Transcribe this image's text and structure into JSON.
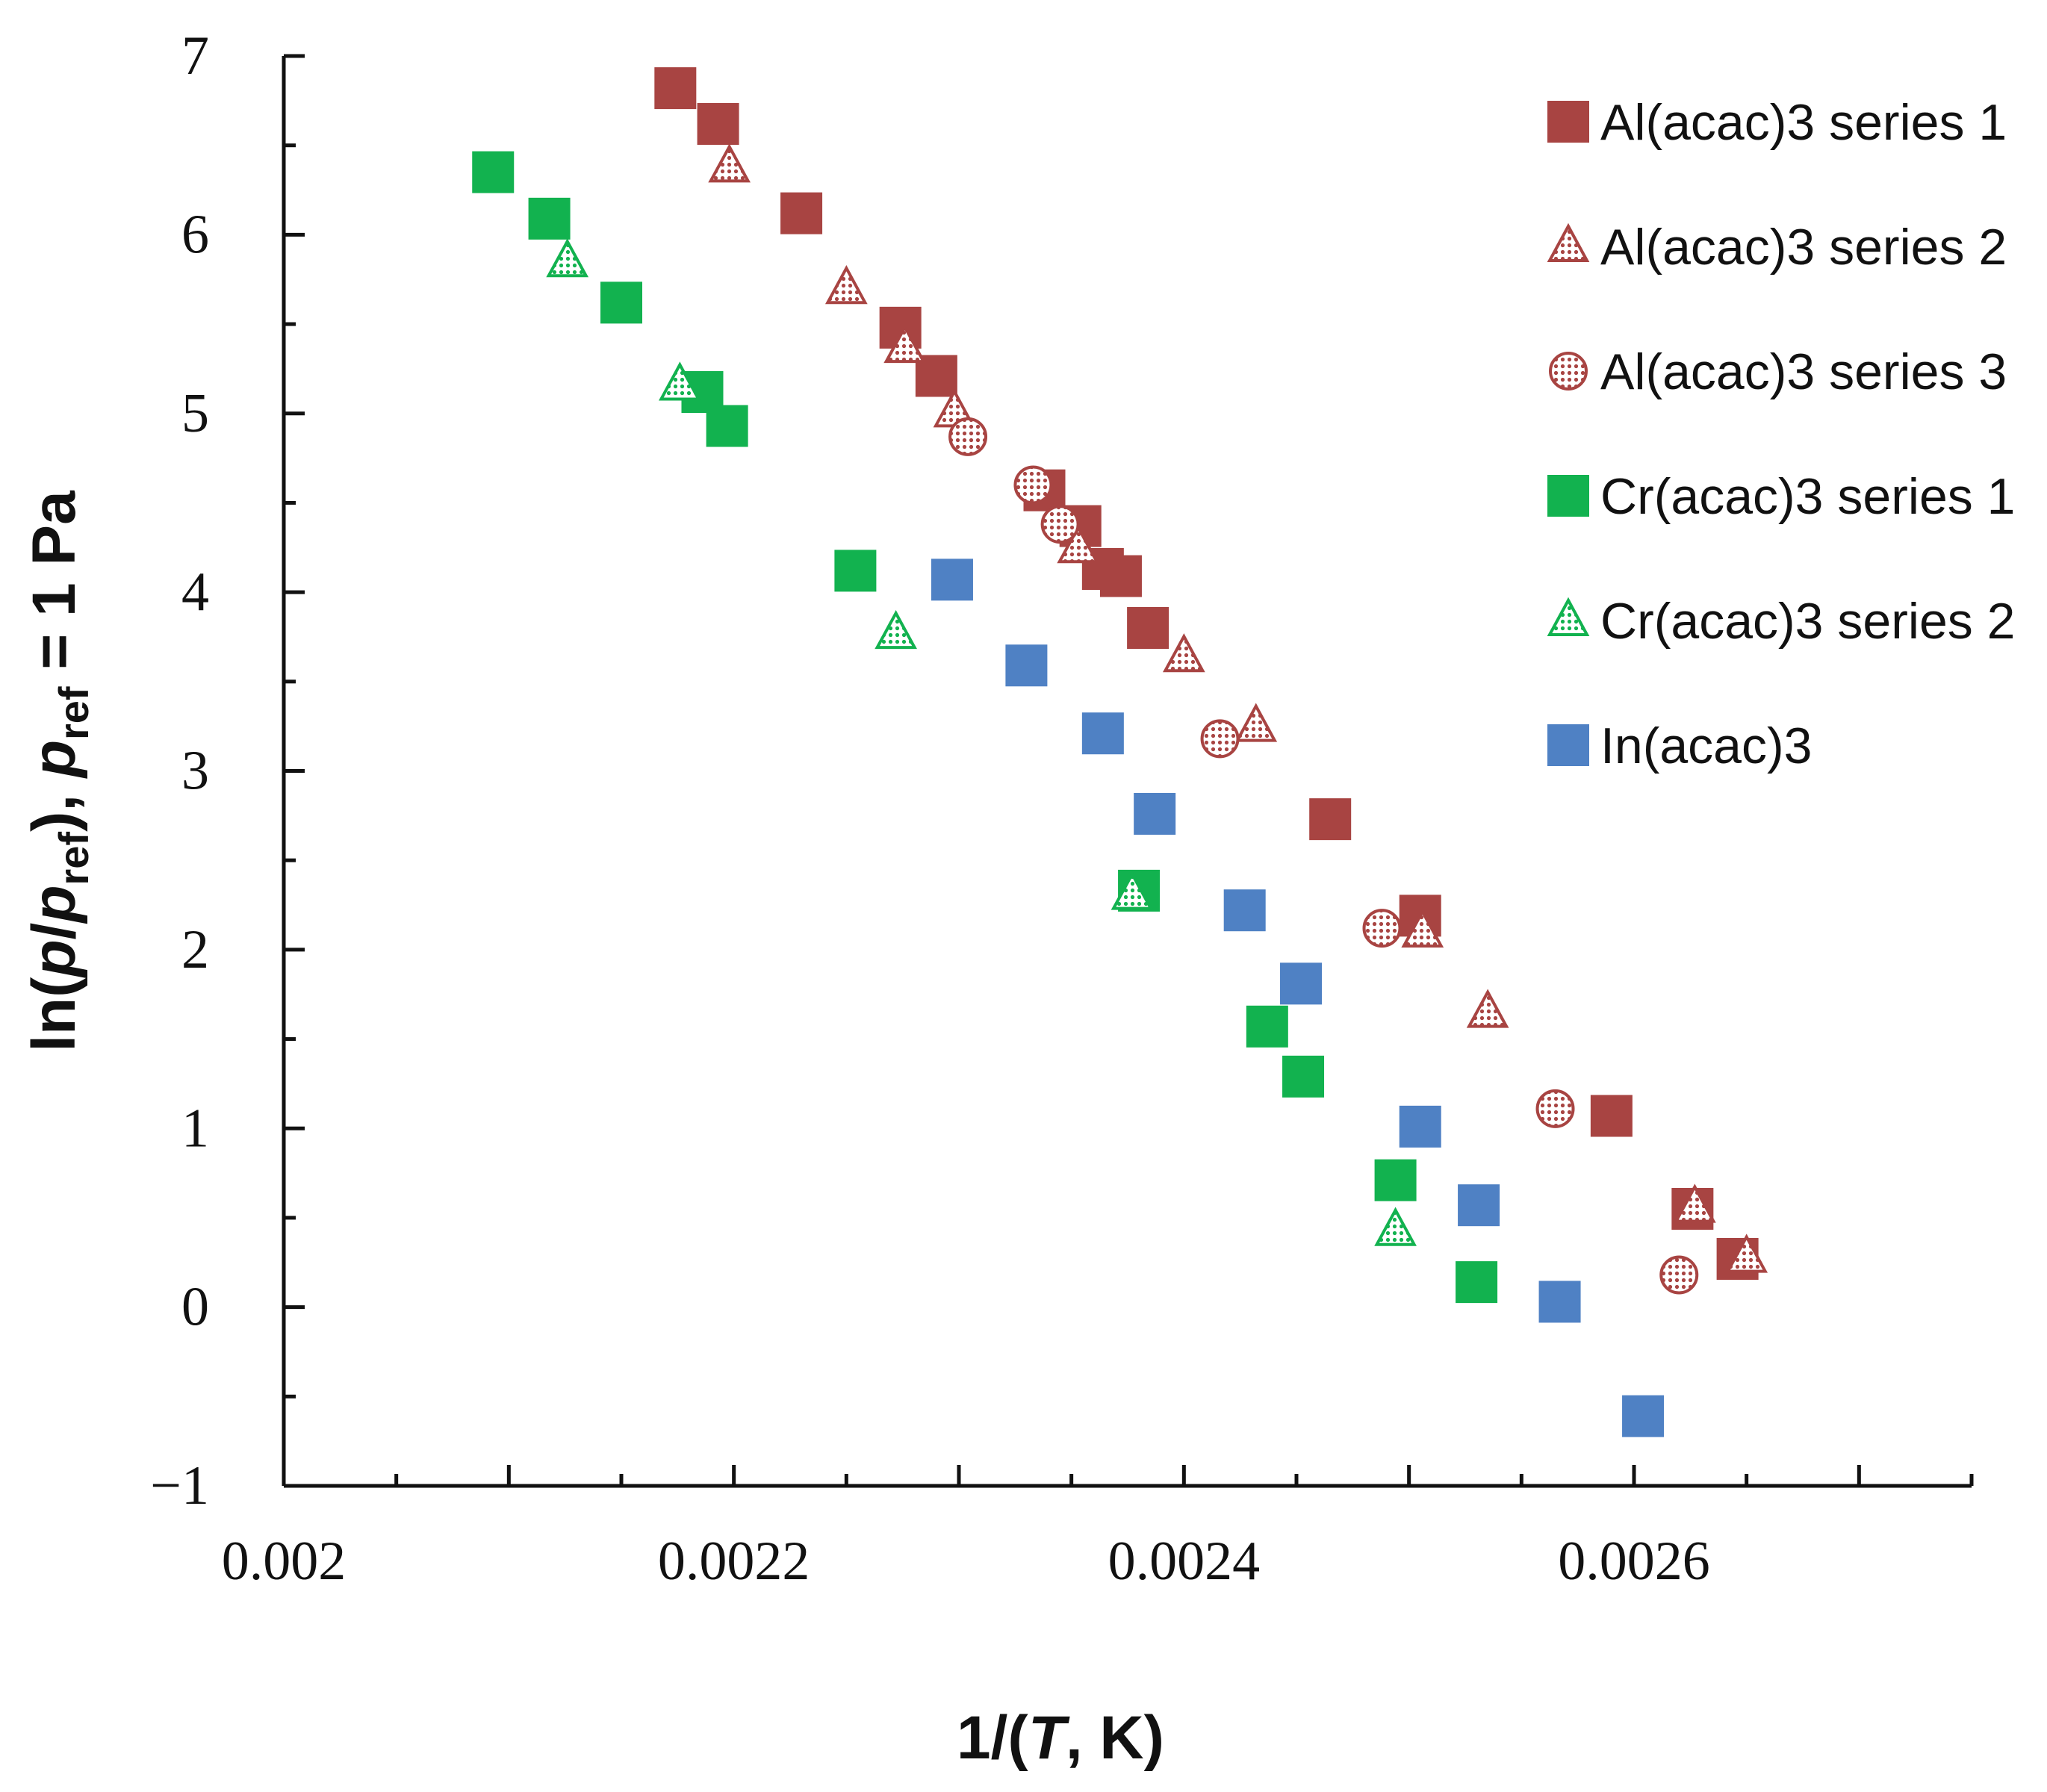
{
  "chart_data": {
    "type": "scatter",
    "title": "",
    "xlabel": {
      "prefix": "1/(",
      "italic": "T",
      "suffix": ", K)"
    },
    "ylabel": {
      "part1": "ln(",
      "p1": "p",
      "p2": "/",
      "p3": "p",
      "sub1": "ref",
      "part2": "), ",
      "p4": "p",
      "sub2": "ref",
      "part3": " = 1 Pa"
    },
    "xlim": [
      0.002,
      0.00275
    ],
    "ylim": [
      -1,
      7
    ],
    "xticks": [
      0.002,
      0.0022,
      0.0024,
      0.0026
    ],
    "xtick_labels": [
      "0.002",
      "0.0022",
      "0.0024",
      "0.0026"
    ],
    "yticks": [
      -1,
      0,
      1,
      2,
      3,
      4,
      5,
      6,
      7
    ],
    "ytick_labels": [
      "−1",
      "0",
      "1",
      "2",
      "3",
      "4",
      "5",
      "6",
      "7"
    ],
    "legend_position": "top-right",
    "series": [
      {
        "name": "Al(acac)3 series 1",
        "marker": "square",
        "color": "#a84442",
        "x": [
          0.002174,
          0.002193,
          0.00223,
          0.002274,
          0.00229,
          0.002338,
          0.002354,
          0.002364,
          0.002372,
          0.002384,
          0.002465,
          0.002505,
          0.00259,
          0.002626,
          0.002646
        ],
        "y": [
          6.82,
          6.62,
          6.12,
          5.48,
          5.21,
          4.57,
          4.37,
          4.13,
          4.09,
          3.8,
          2.73,
          2.19,
          1.07,
          0.55,
          0.27
        ]
      },
      {
        "name": "Al(acac)3 series 2",
        "marker": "triangle-hatched",
        "color": "#a84442",
        "x": [
          0.002198,
          0.00225,
          0.002276,
          0.002298,
          0.002353,
          0.0024,
          0.002432,
          0.002506,
          0.002535,
          0.002627,
          0.00265
        ],
        "y": [
          6.38,
          5.7,
          5.37,
          5.01,
          4.25,
          3.64,
          3.25,
          2.1,
          1.65,
          0.56,
          0.28
        ]
      },
      {
        "name": "Al(acac)3 series 3",
        "marker": "circle-hatched",
        "color": "#a84442",
        "x": [
          0.002304,
          0.002333,
          0.002345,
          0.002416,
          0.002488,
          0.002565,
          0.00262
        ],
        "y": [
          4.87,
          4.6,
          4.38,
          3.18,
          2.12,
          1.11,
          0.18
        ]
      },
      {
        "name": "Cr(acac)3 series 1",
        "marker": "square",
        "color": "#12b24f",
        "x": [
          0.002093,
          0.002118,
          0.00215,
          0.002186,
          0.002197,
          0.002254,
          0.00238,
          0.002437,
          0.002453,
          0.002494,
          0.00253
        ],
        "y": [
          6.35,
          6.09,
          5.62,
          5.12,
          4.93,
          4.12,
          2.33,
          1.57,
          1.29,
          0.71,
          0.14
        ]
      },
      {
        "name": "Cr(acac)3 series 2",
        "marker": "triangle-hatched",
        "color": "#12b24f",
        "x": [
          0.002126,
          0.002176,
          0.002272,
          0.002377,
          0.002494
        ],
        "y": [
          5.85,
          5.16,
          3.77,
          2.31,
          0.43
        ]
      },
      {
        "name": "In(acac)3",
        "marker": "square",
        "color": "#4f81c4",
        "x": [
          0.002297,
          0.00233,
          0.002364,
          0.002387,
          0.002427,
          0.002452,
          0.002505,
          0.002531,
          0.002567,
          0.002604
        ],
        "y": [
          4.07,
          3.59,
          3.21,
          2.76,
          2.22,
          1.81,
          1.01,
          0.57,
          0.03,
          -0.61
        ]
      }
    ]
  }
}
